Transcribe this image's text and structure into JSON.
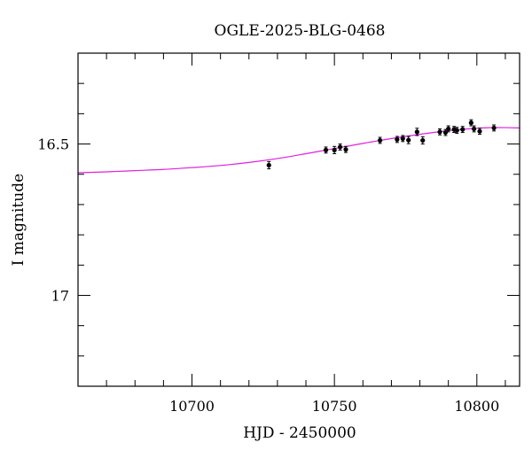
{
  "chart_data": {
    "type": "scatter",
    "title": "OGLE-2025-BLG-0468",
    "xlabel": "HJD - 2450000",
    "ylabel": "I magnitude",
    "xlim": [
      10660,
      10815
    ],
    "ylim": [
      17.3,
      16.2
    ],
    "y_inverted": true,
    "grid": false,
    "x_major_ticks": [
      10700,
      10750,
      10800
    ],
    "x_minor_step": 10,
    "y_major_ticks": [
      16.5,
      17
    ],
    "y_minor_step": 0.1,
    "x_tick_labels": [
      "10700",
      "10750",
      "10800"
    ],
    "y_tick_labels": [
      "16.5",
      "17"
    ],
    "colors": {
      "model": "#e020e0",
      "points": "#000000"
    },
    "series": [
      {
        "kind": "points-with-errorbars",
        "points": [
          {
            "x": 10727,
            "y": 16.57,
            "err": 0.012
          },
          {
            "x": 10747,
            "y": 16.52,
            "err": 0.01
          },
          {
            "x": 10750,
            "y": 16.52,
            "err": 0.012
          },
          {
            "x": 10752,
            "y": 16.51,
            "err": 0.01
          },
          {
            "x": 10754,
            "y": 16.518,
            "err": 0.01
          },
          {
            "x": 10766,
            "y": 16.488,
            "err": 0.01
          },
          {
            "x": 10772,
            "y": 16.485,
            "err": 0.01
          },
          {
            "x": 10774,
            "y": 16.482,
            "err": 0.01
          },
          {
            "x": 10776,
            "y": 16.487,
            "err": 0.012
          },
          {
            "x": 10779,
            "y": 16.46,
            "err": 0.012
          },
          {
            "x": 10781,
            "y": 16.488,
            "err": 0.012
          },
          {
            "x": 10787,
            "y": 16.46,
            "err": 0.01
          },
          {
            "x": 10789,
            "y": 16.462,
            "err": 0.01
          },
          {
            "x": 10790,
            "y": 16.45,
            "err": 0.01
          },
          {
            "x": 10792,
            "y": 16.452,
            "err": 0.01
          },
          {
            "x": 10793,
            "y": 16.455,
            "err": 0.01
          },
          {
            "x": 10795,
            "y": 16.452,
            "err": 0.01
          },
          {
            "x": 10798,
            "y": 16.43,
            "err": 0.01
          },
          {
            "x": 10799,
            "y": 16.45,
            "err": 0.01
          },
          {
            "x": 10801,
            "y": 16.458,
            "err": 0.01
          },
          {
            "x": 10806,
            "y": 16.447,
            "err": 0.01
          }
        ]
      },
      {
        "kind": "model-curve",
        "x": [
          10660,
          10670,
          10680,
          10690,
          10700,
          10710,
          10720,
          10730,
          10740,
          10750,
          10760,
          10770,
          10780,
          10790,
          10800,
          10805,
          10810,
          10815
        ],
        "y": [
          16.595,
          16.592,
          16.588,
          16.584,
          16.578,
          16.571,
          16.561,
          16.548,
          16.532,
          16.515,
          16.498,
          16.482,
          16.468,
          16.456,
          16.448,
          16.446,
          16.446,
          16.447
        ]
      }
    ]
  }
}
